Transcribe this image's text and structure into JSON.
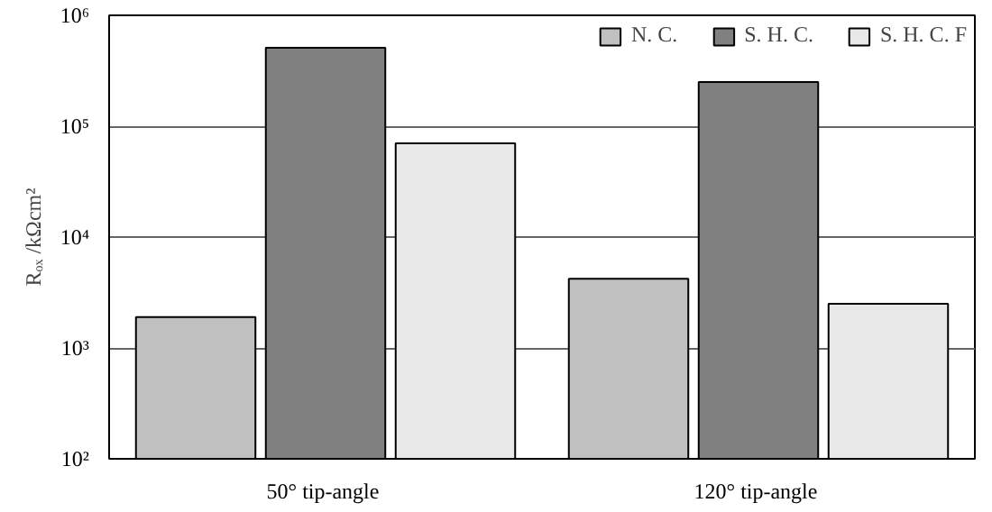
{
  "chart_data": {
    "type": "bar",
    "ylabel": "Rₒₓ /kΩcm²",
    "categories": [
      "50°  tip-angle",
      "120°  tip-angle"
    ],
    "series": [
      {
        "name": "N. C.",
        "color": "#c0c0c0",
        "values": [
          1900,
          4200
        ]
      },
      {
        "name": "S. H. C.",
        "color": "#808080",
        "values": [
          510000,
          250000
        ]
      },
      {
        "name": "S. H. C. F",
        "color": "#e8e8e8",
        "values": [
          70000,
          2500
        ]
      }
    ],
    "log": "y",
    "ylim": [
      100,
      1000000
    ],
    "yticks": [
      {
        "value": 100,
        "label": "10²"
      },
      {
        "value": 1000,
        "label": "10³"
      },
      {
        "value": 10000,
        "label": "10⁴"
      },
      {
        "value": 100000,
        "label": "10⁵"
      },
      {
        "value": 1000000,
        "label": "10⁶"
      }
    ],
    "grid": "y",
    "legend": "top right"
  }
}
